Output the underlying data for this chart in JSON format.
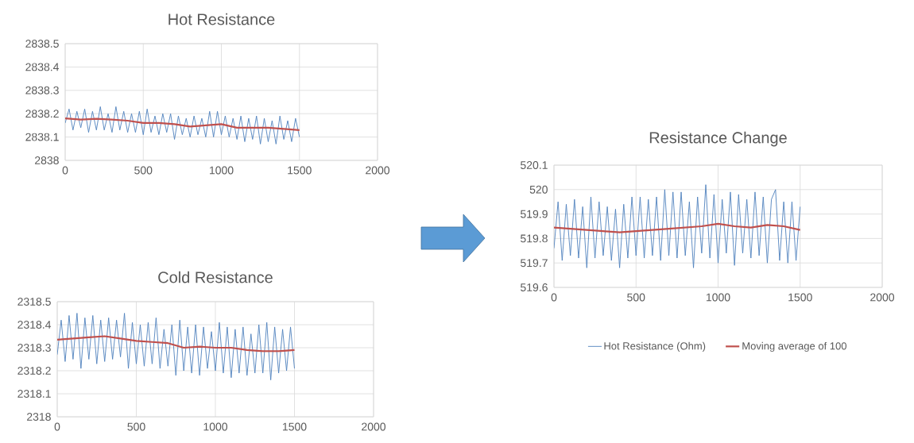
{
  "chart_data": [
    {
      "type": "line",
      "title": "Hot Resistance",
      "xlim": [
        0,
        2000
      ],
      "xticks": [
        0,
        500,
        1000,
        1500,
        2000
      ],
      "ylim": [
        2838,
        2838.5
      ],
      "yticks": [
        2838,
        2838.1,
        2838.2,
        2838.3,
        2838.4,
        2838.5
      ],
      "grid": true,
      "legend": false,
      "series": [
        {
          "color": "#4f81bd",
          "x": [
            0,
            25,
            50,
            75,
            100,
            125,
            150,
            175,
            200,
            225,
            250,
            275,
            300,
            325,
            350,
            375,
            400,
            425,
            450,
            475,
            500,
            525,
            550,
            575,
            600,
            625,
            650,
            675,
            700,
            725,
            750,
            775,
            800,
            825,
            850,
            875,
            900,
            925,
            950,
            975,
            1000,
            1025,
            1050,
            1075,
            1100,
            1125,
            1150,
            1175,
            1200,
            1225,
            1250,
            1275,
            1300,
            1325,
            1350,
            1375,
            1400,
            1425,
            1450,
            1475,
            1500
          ],
          "values": [
            2838.16,
            2838.22,
            2838.13,
            2838.21,
            2838.14,
            2838.22,
            2838.12,
            2838.21,
            2838.13,
            2838.23,
            2838.13,
            2838.2,
            2838.12,
            2838.23,
            2838.13,
            2838.21,
            2838.12,
            2838.2,
            2838.12,
            2838.21,
            2838.11,
            2838.22,
            2838.12,
            2838.19,
            2838.11,
            2838.2,
            2838.12,
            2838.2,
            2838.09,
            2838.19,
            2838.11,
            2838.18,
            2838.1,
            2838.19,
            2838.11,
            2838.18,
            2838.1,
            2838.21,
            2838.1,
            2838.21,
            2838.11,
            2838.19,
            2838.1,
            2838.18,
            2838.09,
            2838.19,
            2838.08,
            2838.18,
            2838.09,
            2838.19,
            2838.07,
            2838.18,
            2838.08,
            2838.17,
            2838.07,
            2838.19,
            2838.09,
            2838.17,
            2838.08,
            2838.18,
            2838.1
          ]
        },
        {
          "color": "#c0504d",
          "x": [
            0,
            100,
            200,
            300,
            400,
            500,
            600,
            700,
            800,
            900,
            1000,
            1100,
            1200,
            1300,
            1400,
            1500
          ],
          "values": [
            2838.18,
            2838.175,
            2838.178,
            2838.175,
            2838.17,
            2838.16,
            2838.16,
            2838.155,
            2838.145,
            2838.15,
            2838.155,
            2838.14,
            2838.14,
            2838.14,
            2838.135,
            2838.13
          ]
        }
      ]
    },
    {
      "type": "line",
      "title": "Cold Resistance",
      "xlim": [
        0,
        2000
      ],
      "xticks": [
        0,
        500,
        1000,
        1500,
        2000
      ],
      "ylim": [
        2318,
        2318.5
      ],
      "yticks": [
        2318,
        2318.1,
        2318.2,
        2318.3,
        2318.4,
        2318.5
      ],
      "grid": true,
      "legend": false,
      "series": [
        {
          "color": "#4f81bd",
          "x": [
            0,
            25,
            50,
            75,
            100,
            125,
            150,
            175,
            200,
            225,
            250,
            275,
            300,
            325,
            350,
            375,
            400,
            425,
            450,
            475,
            500,
            525,
            550,
            575,
            600,
            625,
            650,
            675,
            700,
            725,
            750,
            775,
            800,
            825,
            850,
            875,
            900,
            925,
            950,
            975,
            1000,
            1025,
            1050,
            1075,
            1100,
            1125,
            1150,
            1175,
            1200,
            1225,
            1250,
            1275,
            1300,
            1325,
            1350,
            1375,
            1400,
            1425,
            1450,
            1475,
            1500
          ],
          "values": [
            2318.27,
            2318.42,
            2318.24,
            2318.44,
            2318.25,
            2318.45,
            2318.21,
            2318.43,
            2318.25,
            2318.44,
            2318.23,
            2318.42,
            2318.24,
            2318.43,
            2318.25,
            2318.42,
            2318.26,
            2318.45,
            2318.21,
            2318.41,
            2318.23,
            2318.4,
            2318.22,
            2318.41,
            2318.23,
            2318.43,
            2318.21,
            2318.38,
            2318.22,
            2318.4,
            2318.18,
            2318.42,
            2318.2,
            2318.39,
            2318.19,
            2318.4,
            2318.18,
            2318.39,
            2318.21,
            2318.37,
            2318.2,
            2318.41,
            2318.19,
            2318.39,
            2318.17,
            2318.38,
            2318.19,
            2318.39,
            2318.18,
            2318.36,
            2318.19,
            2318.4,
            2318.19,
            2318.41,
            2318.16,
            2318.39,
            2318.19,
            2318.38,
            2318.2,
            2318.39,
            2318.21
          ]
        },
        {
          "color": "#c0504d",
          "x": [
            0,
            100,
            200,
            300,
            400,
            500,
            600,
            700,
            800,
            900,
            1000,
            1100,
            1200,
            1300,
            1400,
            1500
          ],
          "values": [
            2318.335,
            2318.34,
            2318.345,
            2318.35,
            2318.34,
            2318.33,
            2318.325,
            2318.32,
            2318.3,
            2318.305,
            2318.3,
            2318.3,
            2318.29,
            2318.285,
            2318.285,
            2318.29
          ]
        }
      ]
    },
    {
      "type": "line",
      "title": "Resistance Change",
      "xlim": [
        0,
        2000
      ],
      "xticks": [
        0,
        500,
        1000,
        1500,
        2000
      ],
      "ylim": [
        519.6,
        520.1
      ],
      "yticks": [
        519.6,
        519.7,
        519.8,
        519.9,
        520,
        520.1
      ],
      "grid": true,
      "legend": "bottom",
      "series": [
        {
          "name": "Hot Resistance (Ohm)",
          "color": "#4f81bd",
          "x": [
            0,
            25,
            50,
            75,
            100,
            125,
            150,
            175,
            200,
            225,
            250,
            275,
            300,
            325,
            350,
            375,
            400,
            425,
            450,
            475,
            500,
            525,
            550,
            575,
            600,
            625,
            650,
            675,
            700,
            725,
            750,
            775,
            800,
            825,
            850,
            875,
            900,
            925,
            950,
            975,
            1000,
            1025,
            1050,
            1075,
            1100,
            1125,
            1150,
            1175,
            1200,
            1225,
            1250,
            1275,
            1300,
            1325,
            1350,
            1375,
            1400,
            1425,
            1450,
            1475,
            1500
          ],
          "values": [
            519.76,
            519.95,
            519.71,
            519.94,
            519.73,
            519.96,
            519.72,
            519.93,
            519.68,
            519.97,
            519.72,
            519.95,
            519.73,
            519.93,
            519.71,
            519.92,
            519.68,
            519.94,
            519.72,
            519.97,
            519.73,
            519.97,
            519.72,
            519.96,
            519.73,
            519.97,
            519.71,
            520.0,
            519.73,
            519.99,
            519.72,
            519.99,
            519.73,
            519.95,
            519.68,
            519.97,
            519.74,
            520.02,
            519.72,
            519.98,
            519.7,
            519.96,
            519.74,
            519.99,
            519.69,
            519.98,
            519.74,
            519.96,
            519.72,
            519.99,
            519.73,
            519.97,
            519.7,
            519.96,
            520.0,
            519.71,
            519.95,
            519.7,
            519.95,
            519.71,
            519.93
          ]
        },
        {
          "name": "Moving average of 100",
          "color": "#c0504d",
          "x": [
            0,
            100,
            200,
            300,
            400,
            500,
            600,
            700,
            800,
            900,
            1000,
            1100,
            1200,
            1300,
            1400,
            1500
          ],
          "values": [
            519.845,
            519.84,
            519.835,
            519.83,
            519.825,
            519.83,
            519.835,
            519.84,
            519.845,
            519.85,
            519.86,
            519.85,
            519.845,
            519.855,
            519.85,
            519.835
          ]
        }
      ]
    }
  ]
}
